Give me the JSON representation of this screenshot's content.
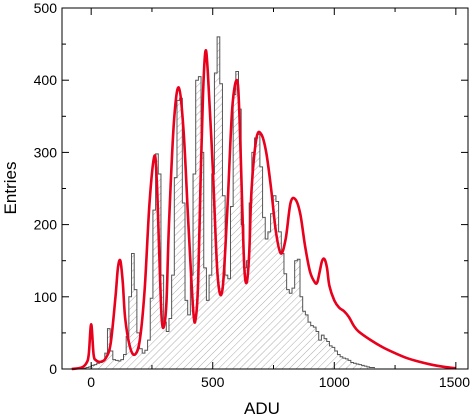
{
  "chart_data": {
    "type": "bar",
    "title": "",
    "xlabel": "ADU",
    "ylabel": "Entries",
    "xlim": [
      -120,
      1550
    ],
    "ylim": [
      0,
      500
    ],
    "x_ticks": [
      0,
      500,
      1000,
      1500
    ],
    "y_ticks": [
      0,
      100,
      200,
      300,
      400,
      500
    ],
    "grid": false,
    "legend": "none",
    "colors": {
      "histogram": "#555555",
      "hatch": "#aaaaaa",
      "fit": "#e8001c",
      "axis": "#000000"
    },
    "histogram": {
      "name": "",
      "bin_width": 11,
      "bin_start": -120,
      "values": [
        0,
        0,
        0,
        0,
        0,
        0,
        0,
        1,
        1,
        2,
        3,
        5,
        6,
        8,
        9,
        12,
        22,
        56,
        25,
        13,
        12,
        11,
        13,
        20,
        45,
        100,
        160,
        110,
        50,
        28,
        22,
        26,
        40,
        98,
        220,
        298,
        270,
        130,
        65,
        52,
        70,
        130,
        265,
        372,
        375,
        230,
        95,
        75,
        130,
        270,
        400,
        405,
        300,
        140,
        95,
        130,
        270,
        410,
        460,
        395,
        240,
        130,
        125,
        225,
        380,
        412,
        360,
        200,
        140,
        150,
        230,
        300,
        320,
        325,
        280,
        210,
        180,
        190,
        215,
        240,
        232,
        190,
        160,
        132,
        110,
        105,
        112,
        150,
        152,
        100,
        80,
        75,
        65,
        60,
        58,
        52,
        40,
        47,
        42,
        38,
        32,
        30,
        25,
        20,
        17,
        15,
        14,
        12,
        9,
        8,
        7,
        6,
        5,
        4,
        3,
        2,
        2
      ]
    },
    "fit": {
      "name": "",
      "x": [
        -80,
        -40,
        -20,
        -10,
        0,
        10,
        20,
        40,
        60,
        80,
        100,
        110,
        120,
        130,
        140,
        160,
        180,
        200,
        220,
        240,
        260,
        270,
        280,
        290,
        300,
        310,
        320,
        340,
        360,
        380,
        400,
        420,
        430,
        440,
        450,
        460,
        470,
        480,
        500,
        520,
        540,
        560,
        580,
        600,
        610,
        620,
        630,
        640,
        650,
        660,
        680,
        700,
        720,
        740,
        760,
        780,
        800,
        820,
        840,
        860,
        880,
        900,
        920,
        930,
        940,
        950,
        960,
        970,
        980,
        1000,
        1020,
        1040,
        1060,
        1080,
        1100,
        1150,
        1200,
        1250,
        1300,
        1350,
        1400,
        1450,
        1500
      ],
      "y": [
        0,
        2,
        8,
        20,
        62,
        20,
        12,
        10,
        15,
        35,
        100,
        140,
        150,
        120,
        70,
        30,
        20,
        40,
        110,
        230,
        295,
        260,
        160,
        70,
        60,
        95,
        200,
        340,
        390,
        330,
        200,
        80,
        70,
        120,
        260,
        380,
        440,
        410,
        280,
        130,
        110,
        220,
        360,
        400,
        350,
        240,
        140,
        120,
        160,
        250,
        320,
        325,
        300,
        250,
        190,
        160,
        180,
        230,
        235,
        215,
        170,
        135,
        120,
        120,
        135,
        150,
        152,
        140,
        115,
        95,
        85,
        80,
        72,
        60,
        52,
        40,
        30,
        22,
        15,
        10,
        6,
        3,
        1
      ]
    }
  }
}
